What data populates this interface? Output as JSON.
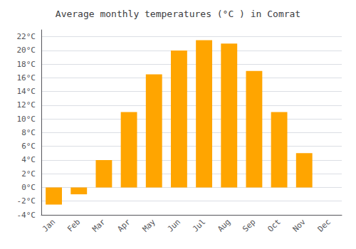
{
  "chart_data": {
    "type": "bar",
    "title": "Average monthly temperatures (°C ) in Comrat",
    "categories": [
      "Jan",
      "Feb",
      "Mar",
      "Apr",
      "May",
      "Jun",
      "Jul",
      "Aug",
      "Sep",
      "Oct",
      "Nov",
      "Dec"
    ],
    "values": [
      -2.5,
      -1.0,
      4.0,
      11.0,
      16.5,
      20.0,
      21.5,
      21.0,
      17.0,
      11.0,
      5.0,
      0.0
    ],
    "color": "#FFA500",
    "ylim": [
      -4,
      23
    ],
    "yticks": [
      {
        "value": -4,
        "label": "-4°C"
      },
      {
        "value": -2,
        "label": "-2°C"
      },
      {
        "value": 0,
        "label": "0°C"
      },
      {
        "value": 2,
        "label": "2°C"
      },
      {
        "value": 4,
        "label": "4°C"
      },
      {
        "value": 6,
        "label": "6°C"
      },
      {
        "value": 8,
        "label": "8°C"
      },
      {
        "value": 10,
        "label": "10°C"
      },
      {
        "value": 12,
        "label": "12°C"
      },
      {
        "value": 14,
        "label": "14°C"
      },
      {
        "value": 16,
        "label": "16°C"
      },
      {
        "value": 18,
        "label": "18°C"
      },
      {
        "value": 20,
        "label": "20°C"
      },
      {
        "value": 22,
        "label": "22°C"
      }
    ],
    "grid": true
  }
}
